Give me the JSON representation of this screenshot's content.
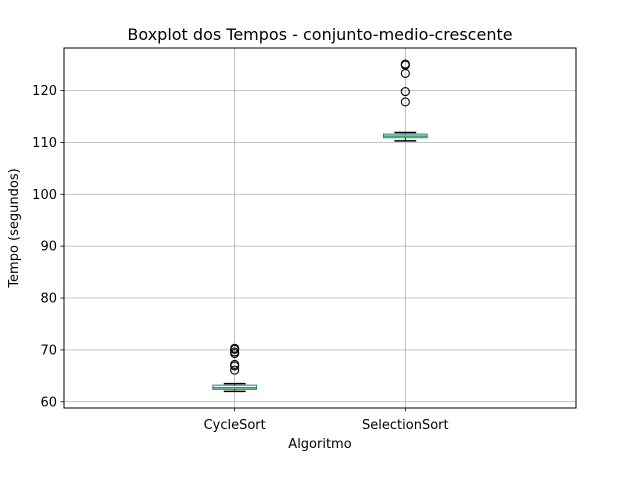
{
  "chart_data": {
    "type": "boxplot",
    "title": "Boxplot dos Tempos - conjunto-medio-crescente",
    "xlabel": "Algoritmo",
    "ylabel": "Tempo (segundos)",
    "categories": [
      "CycleSort",
      "SelectionSort"
    ],
    "ylim": [
      58.8,
      128.2
    ],
    "yticks": [
      60,
      70,
      80,
      90,
      100,
      110,
      120
    ],
    "grid": true,
    "boxes": [
      {
        "name": "CycleSort",
        "whisker_low": 62.0,
        "q1": 62.4,
        "median": 62.7,
        "q3": 63.2,
        "whisker_high": 63.5,
        "outliers": [
          66.1,
          66.9,
          67.2,
          69.3,
          69.6,
          70.1,
          70.3
        ]
      },
      {
        "name": "SelectionSort",
        "whisker_low": 110.3,
        "q1": 110.9,
        "median": 111.2,
        "q3": 111.6,
        "whisker_high": 111.9,
        "outliers": [
          117.8,
          119.8,
          123.3,
          124.9,
          125.1
        ]
      }
    ],
    "colors": {
      "box": "#1f77b4",
      "median": "#2ca02c",
      "whisker": "#000000",
      "grid": "#b0b0b0",
      "outlier": "#000000"
    }
  }
}
